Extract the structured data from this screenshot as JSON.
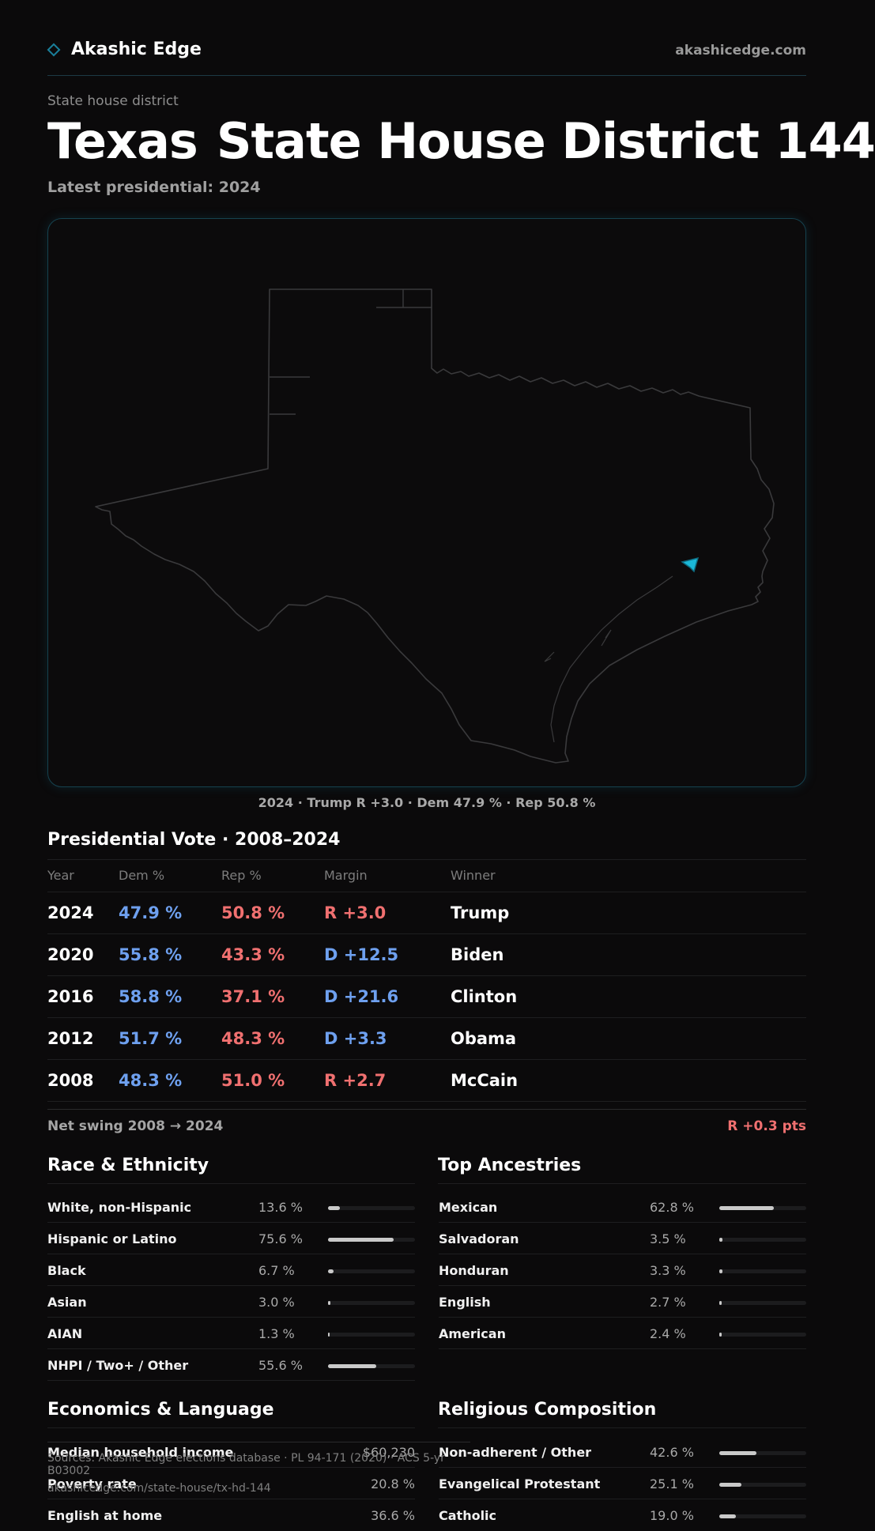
{
  "header": {
    "brand": "Akashic Edge",
    "domain": "akashicedge.com"
  },
  "kicker": "State house district",
  "title_state": "Texas",
  "title_district": "State House District 144",
  "subtitle": "Latest presidential: 2024",
  "map_caption": "2024 · Trump R +3.0 · Dem 47.9 % · Rep 50.8 %",
  "presidential": {
    "title": "Presidential Vote · 2008–2024",
    "headers": [
      "Year",
      "Dem %",
      "Rep %",
      "Margin",
      "Winner"
    ],
    "rows": [
      {
        "year": "2024",
        "dem": "47.9 %",
        "rep": "50.8 %",
        "margin": "R +3.0",
        "winner": "Trump"
      },
      {
        "year": "2020",
        "dem": "55.8 %",
        "rep": "43.3 %",
        "margin": "D +12.5",
        "winner": "Biden"
      },
      {
        "year": "2016",
        "dem": "58.8 %",
        "rep": "37.1 %",
        "margin": "D +21.6",
        "winner": "Clinton"
      },
      {
        "year": "2012",
        "dem": "51.7 %",
        "rep": "48.3 %",
        "margin": "D +3.3",
        "winner": "Obama"
      },
      {
        "year": "2008",
        "dem": "48.3 %",
        "rep": "51.0 %",
        "margin": "R +2.7",
        "winner": "McCain"
      }
    ]
  },
  "net_swing": {
    "label": "Net swing 2008 → 2024",
    "value": "R +0.3 pts"
  },
  "race": {
    "title": "Race & Ethnicity",
    "rows": [
      {
        "label": "White, non-Hispanic",
        "pct": "13.6 %",
        "value": 13.6
      },
      {
        "label": "Hispanic or Latino",
        "pct": "75.6 %",
        "value": 75.6
      },
      {
        "label": "Black",
        "pct": "6.7 %",
        "value": 6.7
      },
      {
        "label": "Asian",
        "pct": "3.0 %",
        "value": 3.0
      },
      {
        "label": "AIAN",
        "pct": "1.3 %",
        "value": 1.3
      },
      {
        "label": "NHPI / Two+ / Other",
        "pct": "55.6 %",
        "value": 55.6
      }
    ]
  },
  "ancestry": {
    "title": "Top Ancestries",
    "rows": [
      {
        "label": "Mexican",
        "pct": "62.8 %",
        "value": 62.8
      },
      {
        "label": "Salvadoran",
        "pct": "3.5 %",
        "value": 3.5
      },
      {
        "label": "Honduran",
        "pct": "3.3 %",
        "value": 3.3
      },
      {
        "label": "English",
        "pct": "2.7 %",
        "value": 2.7
      },
      {
        "label": "American",
        "pct": "2.4 %",
        "value": 2.4
      }
    ]
  },
  "economics": {
    "title": "Economics & Language",
    "rows": [
      {
        "label": "Median household income",
        "pct": "$60,230"
      },
      {
        "label": "Poverty rate",
        "pct": "20.8 %"
      },
      {
        "label": "English at home",
        "pct": "36.6 %"
      }
    ]
  },
  "religion": {
    "title": "Religious Composition",
    "rows": [
      {
        "label": "Non-adherent / Other",
        "pct": "42.6 %",
        "value": 42.6
      },
      {
        "label": "Evangelical Protestant",
        "pct": "25.1 %",
        "value": 25.1
      },
      {
        "label": "Catholic",
        "pct": "19.0 %",
        "value": 19.0
      }
    ]
  },
  "footer": {
    "sources": "Sources: Akashic Edge elections database · PL 94-171 (2020) · ACS 5-yr B03002",
    "url": "akashicedge.com/state-house/tx-hd-144"
  },
  "colors": {
    "dem": "#6ea0ef",
    "rep": "#f07070",
    "accent": "#1ab8d8",
    "bar": "#c9c9c9"
  }
}
